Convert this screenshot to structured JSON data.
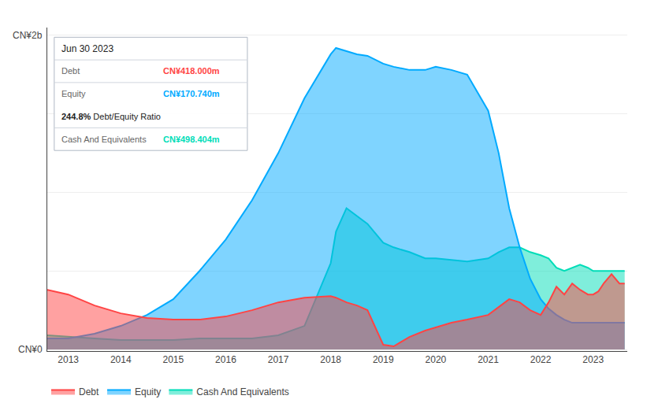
{
  "chart_data": {
    "type": "area",
    "x": [
      2012.6,
      2013.0,
      2013.5,
      2014.0,
      2014.5,
      2015.0,
      2015.5,
      2016.0,
      2016.5,
      2017.0,
      2017.5,
      2018.0,
      2018.1,
      2018.3,
      2018.5,
      2018.7,
      2019.0,
      2019.2,
      2019.5,
      2019.8,
      2020.0,
      2020.3,
      2020.6,
      2021.0,
      2021.2,
      2021.4,
      2021.6,
      2021.8,
      2022.0,
      2022.15,
      2022.3,
      2022.45,
      2022.6,
      2022.75,
      2022.9,
      2023.0,
      2023.1,
      2023.2,
      2023.35,
      2023.5,
      2023.6
    ],
    "series": [
      {
        "name": "Debt",
        "color": "#ff4444",
        "values": [
          0.38,
          0.35,
          0.28,
          0.23,
          0.2,
          0.19,
          0.19,
          0.21,
          0.25,
          0.3,
          0.33,
          0.34,
          0.33,
          0.3,
          0.28,
          0.25,
          0.03,
          0.02,
          0.08,
          0.12,
          0.14,
          0.17,
          0.19,
          0.22,
          0.27,
          0.32,
          0.3,
          0.25,
          0.22,
          0.3,
          0.4,
          0.35,
          0.42,
          0.38,
          0.35,
          0.35,
          0.37,
          0.42,
          0.48,
          0.42,
          0.42
        ]
      },
      {
        "name": "Equity",
        "color": "#00aaff",
        "values": [
          0.07,
          0.07,
          0.1,
          0.15,
          0.22,
          0.32,
          0.5,
          0.7,
          0.95,
          1.25,
          1.6,
          1.88,
          1.92,
          1.9,
          1.88,
          1.87,
          1.82,
          1.8,
          1.78,
          1.78,
          1.8,
          1.78,
          1.75,
          1.52,
          1.25,
          0.9,
          0.65,
          0.45,
          0.32,
          0.26,
          0.22,
          0.19,
          0.17,
          0.17,
          0.17,
          0.17,
          0.17,
          0.17,
          0.17,
          0.17,
          0.17
        ]
      },
      {
        "name": "Cash And Equivalents",
        "color": "#00ddb8",
        "values": [
          0.09,
          0.08,
          0.07,
          0.06,
          0.06,
          0.06,
          0.07,
          0.07,
          0.07,
          0.09,
          0.15,
          0.55,
          0.75,
          0.9,
          0.85,
          0.8,
          0.68,
          0.65,
          0.62,
          0.58,
          0.58,
          0.57,
          0.56,
          0.58,
          0.62,
          0.65,
          0.65,
          0.62,
          0.6,
          0.58,
          0.52,
          0.5,
          0.52,
          0.54,
          0.52,
          0.5,
          0.5,
          0.5,
          0.5,
          0.5,
          0.5
        ]
      }
    ],
    "xlim": [
      2012.6,
      2023.65
    ],
    "xticks": [
      2013,
      2014,
      2015,
      2016,
      2017,
      2018,
      2019,
      2020,
      2021,
      2022,
      2023
    ],
    "ylim": [
      -0.01,
      2.05
    ],
    "yticks": [
      0,
      0.5,
      1,
      1.5,
      2
    ],
    "tick_labels": "x",
    "grid": true,
    "legend": "bottom",
    "annotations": [
      {
        "text": "CN¥2b"
      },
      {
        "text": "CN¥0"
      },
      {
        "text": "Jun 30 2023"
      },
      {
        "text": "Debt"
      },
      {
        "text": "CN¥418.000m",
        "color": "#ff4444"
      },
      {
        "text": "Equity"
      },
      {
        "text": "CN¥170.740m",
        "color": "#00aaff"
      },
      {
        "text": "244.8%"
      },
      {
        "text": " Debt/Equity Ratio"
      },
      {
        "text": "Cash And Equivalents"
      },
      {
        "text": "CN¥498.404m",
        "color": "#00ddb8"
      }
    ]
  }
}
